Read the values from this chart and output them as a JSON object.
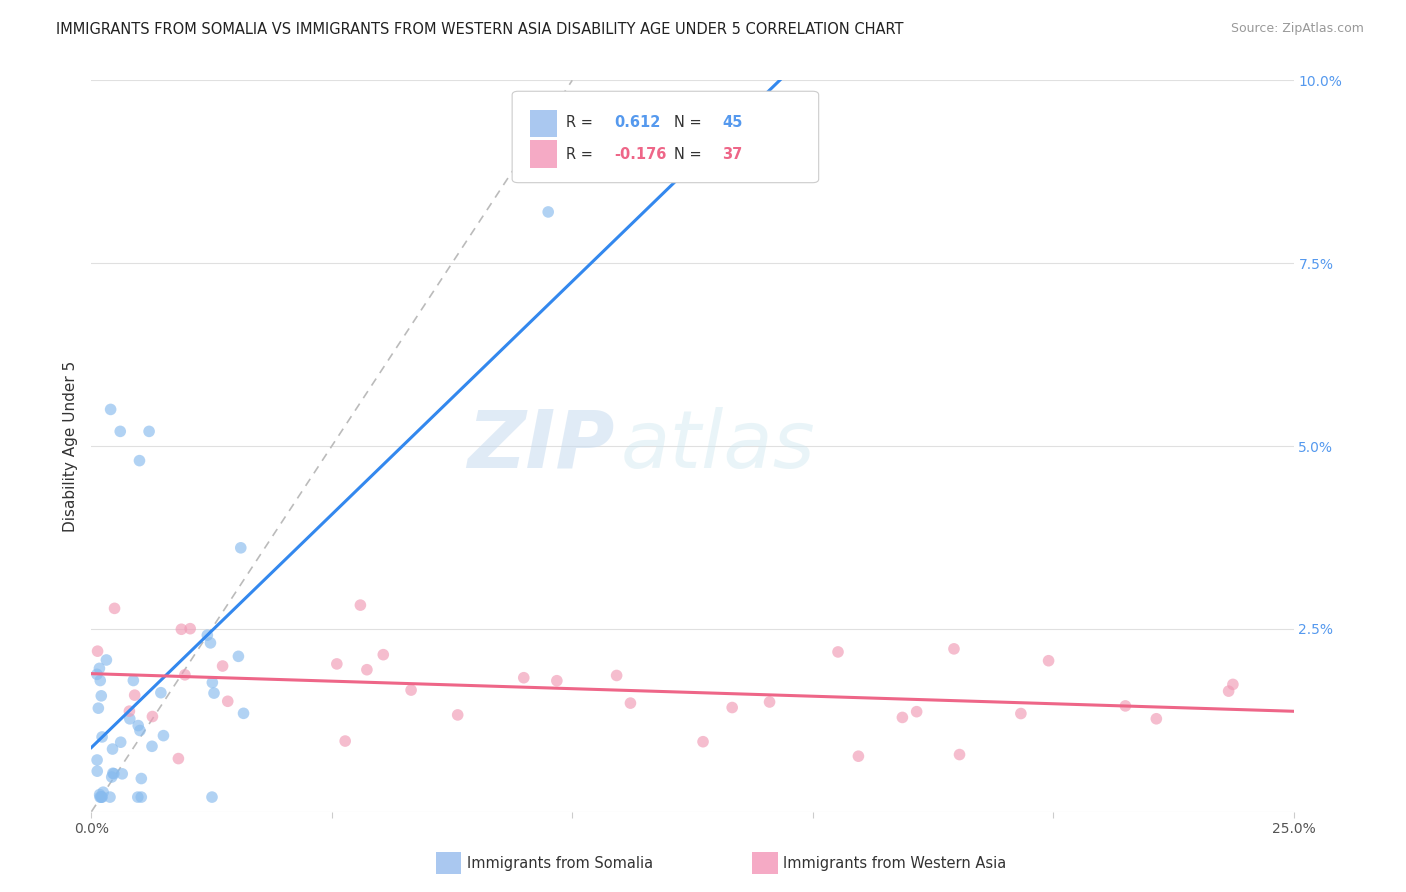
{
  "title": "IMMIGRANTS FROM SOMALIA VS IMMIGRANTS FROM WESTERN ASIA DISABILITY AGE UNDER 5 CORRELATION CHART",
  "source": "Source: ZipAtlas.com",
  "ylabel": "Disability Age Under 5",
  "xlim": [
    0.0,
    0.25
  ],
  "ylim": [
    0.0,
    0.1
  ],
  "legend1_r": "0.612",
  "legend1_n": "45",
  "legend2_r": "-0.176",
  "legend2_n": "37",
  "legend1_color": "#aac8f0",
  "legend2_color": "#f5aac5",
  "somalia_color": "#88bbee",
  "western_asia_color": "#f09ab5",
  "regression_somalia_color": "#3388ee",
  "regression_western_asia_color": "#ee6688",
  "diagonal_color": "#bbbbbb",
  "watermark_zip": "ZIP",
  "watermark_atlas": "atlas",
  "background_color": "#ffffff",
  "grid_color": "#e0e0e0",
  "footer_label1": "Immigrants from Somalia",
  "footer_label2": "Immigrants from Western Asia",
  "right_tick_color": "#5599ee"
}
